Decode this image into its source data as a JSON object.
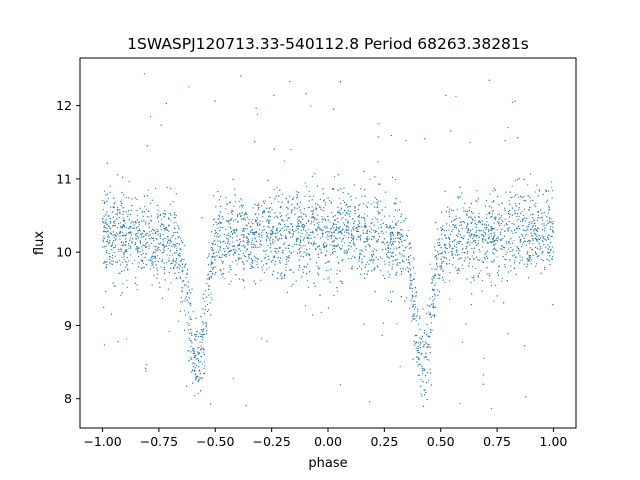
{
  "chart_data": {
    "type": "scatter",
    "title": "1SWASPJ120713.33-540112.8 Period 68263.38281s",
    "xlabel": "phase",
    "ylabel": "flux",
    "xlim": [
      -1.1,
      1.1
    ],
    "ylim": [
      7.6,
      12.65
    ],
    "xticks": [
      -1.0,
      -0.75,
      -0.5,
      -0.25,
      0.0,
      0.25,
      0.5,
      0.75,
      1.0
    ],
    "xtick_labels": [
      "−1.00",
      "−0.75",
      "−0.50",
      "−0.25",
      "0.00",
      "0.25",
      "0.50",
      "0.75",
      "1.00"
    ],
    "yticks": [
      8,
      9,
      10,
      11,
      12
    ],
    "ytick_labels": [
      "8",
      "9",
      "10",
      "11",
      "12"
    ],
    "grid": false,
    "marker_color": "#1f77b4",
    "series": [
      {
        "phase_range": [
          -1.0,
          1.0
        ],
        "baseline_flux": 10.2,
        "typical_scatter": 0.3,
        "eclipses": [
          {
            "phase": -0.58,
            "min_flux": 8.5
          },
          {
            "phase": 0.42,
            "min_flux": 8.5
          }
        ],
        "outlier_flux_range": [
          7.85,
          12.45
        ]
      }
    ]
  }
}
